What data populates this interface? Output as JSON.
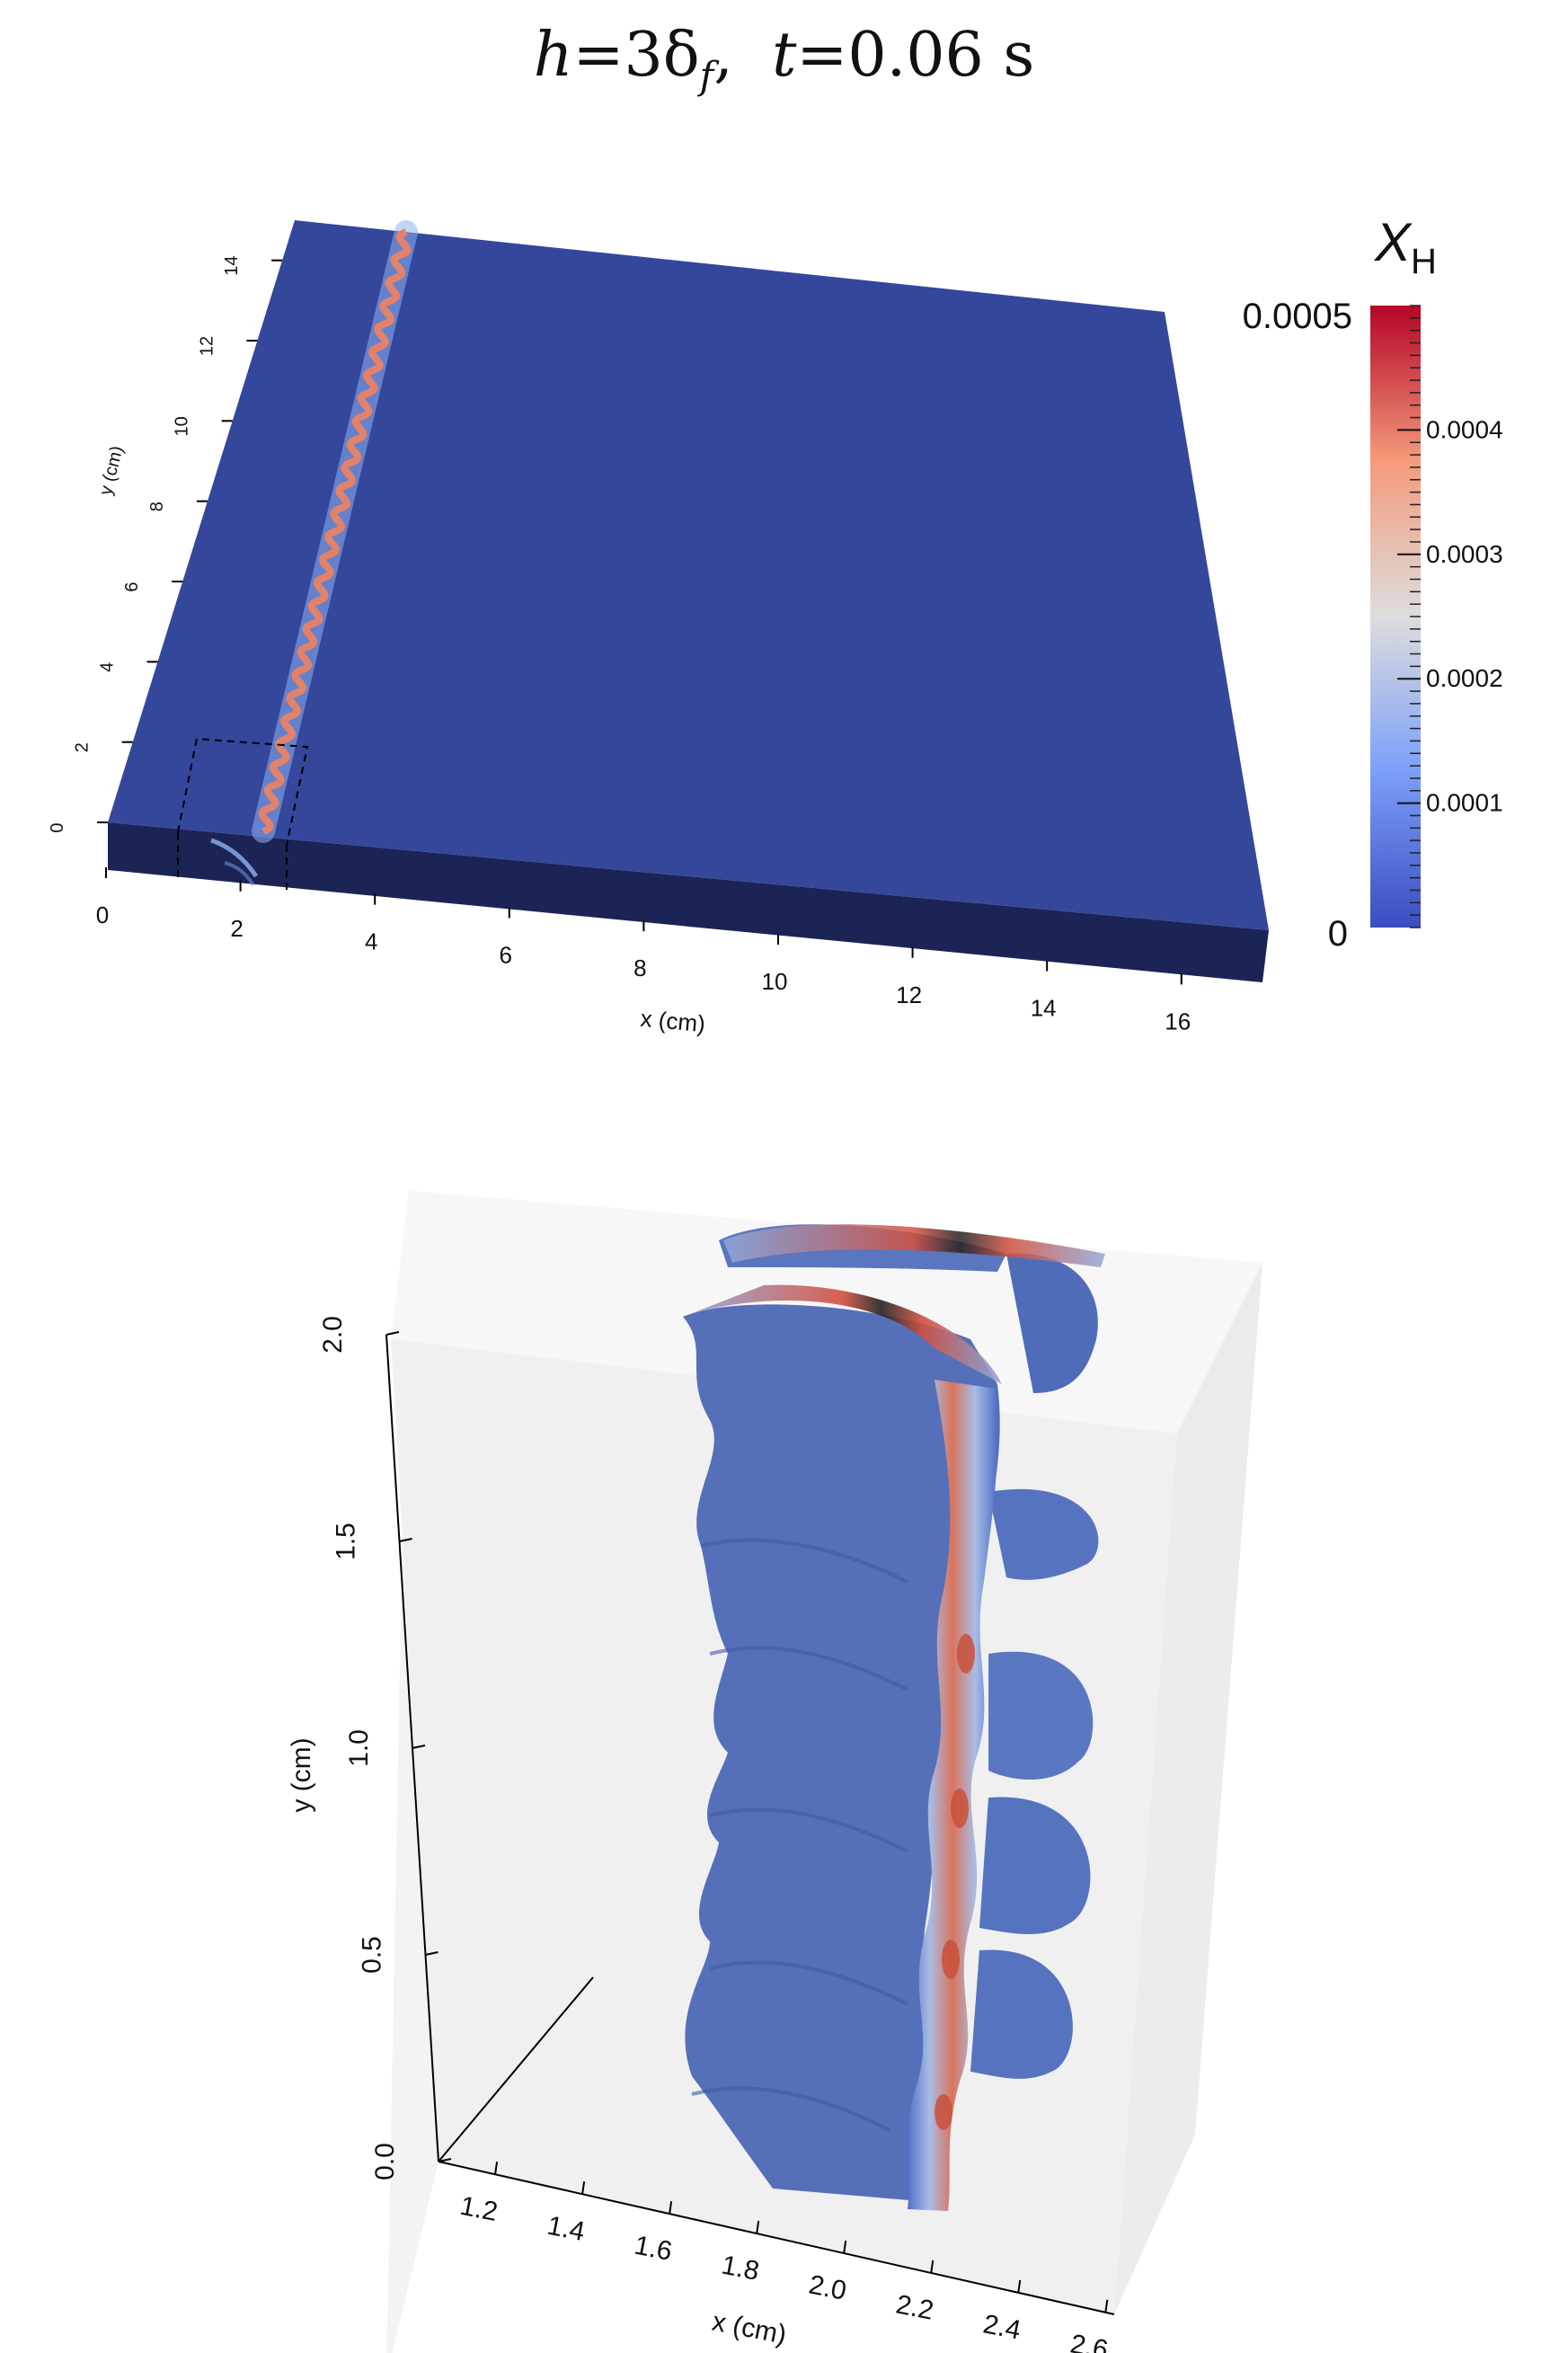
{
  "title": {
    "h_label": "h",
    "eq1": "=3δ",
    "delta_sub": "f",
    "sep": ",",
    "t_label": "t",
    "eq2": "=0.06 s"
  },
  "panel_top": {
    "x_axis": {
      "label": "x (cm)",
      "ticks": [
        "0",
        "2",
        "4",
        "6",
        "8",
        "10",
        "12",
        "14",
        "16"
      ]
    },
    "y_axis": {
      "label": "y (cm)",
      "ticks": [
        "0",
        "2",
        "4",
        "6",
        "8",
        "10",
        "12",
        "14"
      ]
    },
    "colorbar": {
      "title_main": "X",
      "title_sub": "H",
      "max_label": "0.0005",
      "min_label": "0",
      "ticks": [
        "0.0004",
        "0.0003",
        "0.0002",
        "0.0001"
      ],
      "range": [
        0,
        0.0005
      ],
      "colors": {
        "low": "#3b4cc0",
        "mid": "#dddddd",
        "high": "#b40426"
      }
    },
    "domain_color": "#34479b"
  },
  "panel_bottom": {
    "x_axis": {
      "label": "x (cm)",
      "ticks": [
        "1.2",
        "1.4",
        "1.6",
        "1.8",
        "2.0",
        "2.2",
        "2.4",
        "2.6"
      ]
    },
    "y_axis": {
      "label": "y (cm)",
      "ticks": [
        "0.0",
        "0.5",
        "1.0",
        "1.5",
        "2.0"
      ]
    }
  }
}
